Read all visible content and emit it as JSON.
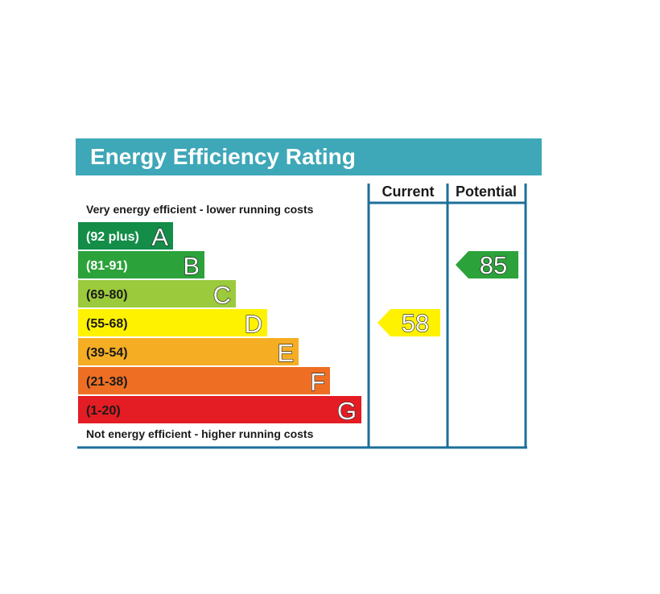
{
  "title": "Energy Efficiency Rating",
  "columns": {
    "current": "Current",
    "potential": "Potential"
  },
  "notes": {
    "top": "Very energy efficient - lower running costs",
    "bottom": "Not energy efficient - higher running costs"
  },
  "colors": {
    "title_bar": "#3ea7b8",
    "frame": "#1d6f9a",
    "range_text_light": "#ffffff",
    "range_text_dark": "#1a1a1a"
  },
  "chart_data": {
    "type": "bar",
    "categories": [
      "A",
      "B",
      "C",
      "D",
      "E",
      "F",
      "G"
    ],
    "ranges": [
      "(92 plus)",
      "(81-91)",
      "(69-80)",
      "(55-68)",
      "(39-54)",
      "(21-38)",
      "(1-20)"
    ],
    "bands": [
      {
        "letter": "A",
        "range": "(92 plus)",
        "min": 92,
        "max": 100,
        "color": "#138d48",
        "text_light": true
      },
      {
        "letter": "B",
        "range": "(81-91)",
        "min": 81,
        "max": 91,
        "color": "#2ba23a",
        "text_light": true
      },
      {
        "letter": "C",
        "range": "(69-80)",
        "min": 69,
        "max": 80,
        "color": "#9bca3c",
        "text_light": false
      },
      {
        "letter": "D",
        "range": "(55-68)",
        "min": 55,
        "max": 68,
        "color": "#fff200",
        "text_light": false
      },
      {
        "letter": "E",
        "range": "(39-54)",
        "min": 39,
        "max": 54,
        "color": "#f5ad23",
        "text_light": false
      },
      {
        "letter": "F",
        "range": "(21-38)",
        "min": 21,
        "max": 38,
        "color": "#ee6f23",
        "text_light": false
      },
      {
        "letter": "G",
        "range": "(1-20)",
        "min": 1,
        "max": 20,
        "color": "#e31d23",
        "text_light": false
      }
    ],
    "current": {
      "value": 58,
      "band": "D",
      "color": "#fff200"
    },
    "potential": {
      "value": 85,
      "band": "B",
      "color": "#2ba23a"
    }
  }
}
